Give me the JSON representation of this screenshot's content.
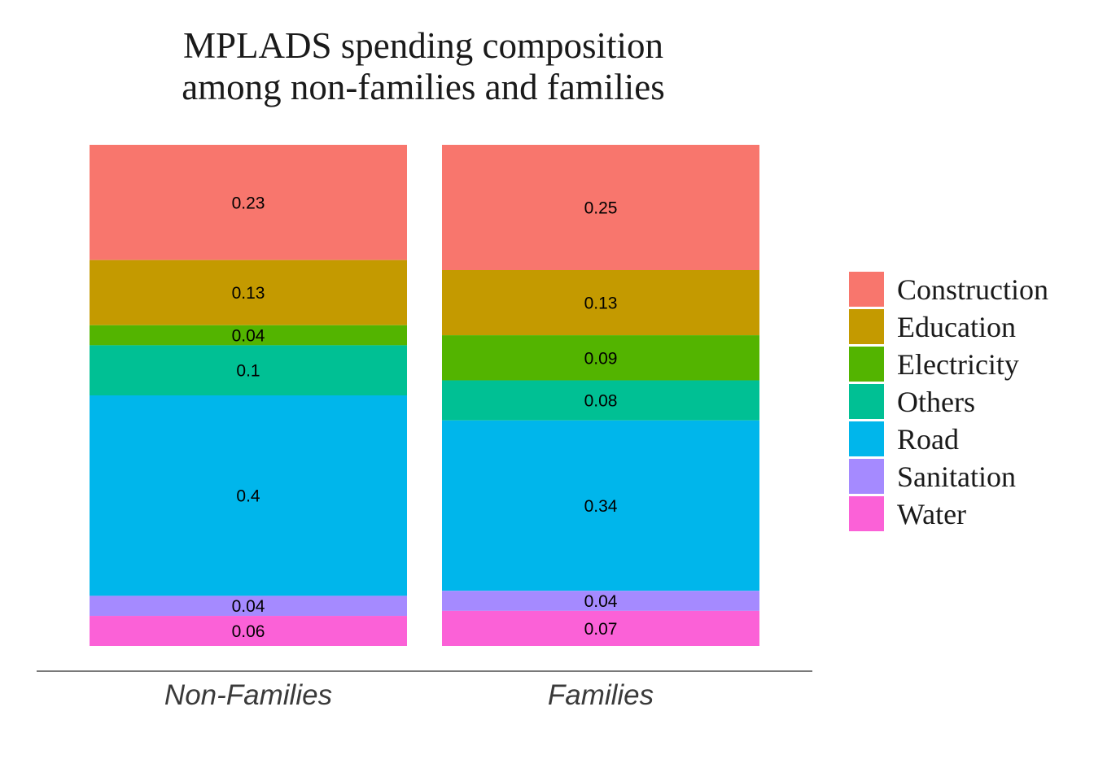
{
  "chart_data": {
    "type": "bar",
    "stacked": true,
    "title": [
      "MPLADS spending composition",
      "among non-families and families"
    ],
    "xlabel": "",
    "ylabel": "",
    "categories": [
      "Non-Families",
      "Families"
    ],
    "ylim": [
      0,
      1
    ],
    "grid": false,
    "legend_position": "right",
    "series": [
      {
        "name": "Construction",
        "color": "#F8766D",
        "values": [
          0.23,
          0.25
        ]
      },
      {
        "name": "Education",
        "color": "#C49A00",
        "values": [
          0.13,
          0.13
        ]
      },
      {
        "name": "Electricity",
        "color": "#53B400",
        "values": [
          0.04,
          0.09
        ]
      },
      {
        "name": "Others",
        "color": "#00C094",
        "values": [
          0.1,
          0.08
        ]
      },
      {
        "name": "Road",
        "color": "#00B6EB",
        "values": [
          0.4,
          0.34
        ]
      },
      {
        "name": "Sanitation",
        "color": "#A58AFF",
        "values": [
          0.04,
          0.04
        ]
      },
      {
        "name": "Water",
        "color": "#FB61D7",
        "values": [
          0.06,
          0.07
        ]
      }
    ]
  }
}
